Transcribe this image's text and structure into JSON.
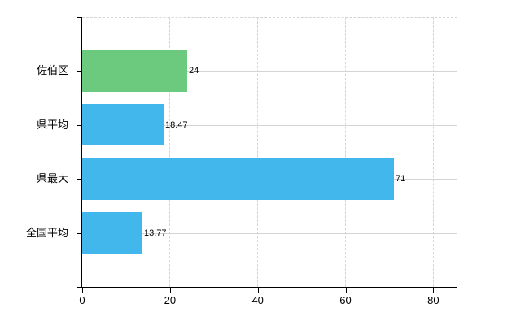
{
  "chart_data": {
    "type": "bar",
    "orientation": "horizontal",
    "title": "",
    "categories": [
      "佐伯区",
      "県平均",
      "県最大",
      "全国平均"
    ],
    "values": [
      24,
      18.47,
      71,
      13.77
    ],
    "data_labels": [
      "24",
      "18.47",
      "71",
      "13.77"
    ],
    "bar_colors": [
      "#6BCA7E",
      "#41B7EC",
      "#41B7EC",
      "#41B7EC"
    ],
    "x_axis": {
      "ticks": [
        0,
        20,
        40,
        60,
        80
      ],
      "tick_labels": [
        "0",
        "20",
        "40",
        "60",
        "80"
      ],
      "range": [
        0,
        85.5
      ]
    },
    "grid": true,
    "legend": false
  },
  "colors": {
    "bar_green": "#6BCA7E",
    "bar_blue": "#41B7EC",
    "gridline": "#d4d4d4",
    "axis": "#000000",
    "text": "#000000",
    "background": "#ffffff"
  }
}
